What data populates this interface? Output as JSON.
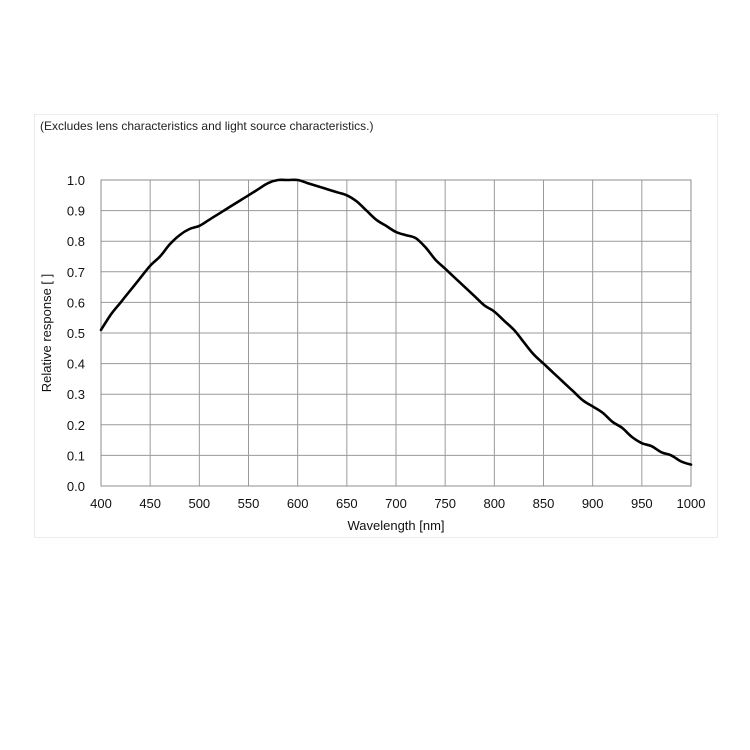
{
  "chart_data": {
    "type": "line",
    "note": "(Excludes lens characteristics and light source characteristics.)",
    "xlabel": "Wavelength [nm]",
    "ylabel": "Relative response [ ]",
    "xlim": [
      400,
      1000
    ],
    "ylim": [
      0,
      1.0
    ],
    "x_ticks": [
      400,
      450,
      500,
      550,
      600,
      650,
      700,
      750,
      800,
      850,
      900,
      950,
      1000
    ],
    "y_ticks": [
      0.0,
      0.1,
      0.2,
      0.3,
      0.4,
      0.5,
      0.6,
      0.7,
      0.8,
      0.9,
      1.0
    ],
    "y_tick_labels": [
      "0.0",
      "0.1",
      "0.2",
      "0.3",
      "0.4",
      "0.5",
      "0.6",
      "0.7",
      "0.8",
      "0.9",
      "1.0"
    ],
    "grid": true,
    "series": [
      {
        "color": "#000000",
        "x": [
          400,
          410,
          420,
          430,
          440,
          450,
          460,
          470,
          480,
          490,
          500,
          510,
          520,
          530,
          540,
          550,
          560,
          570,
          580,
          590,
          600,
          610,
          620,
          630,
          640,
          650,
          660,
          670,
          680,
          690,
          700,
          710,
          720,
          730,
          740,
          750,
          760,
          770,
          780,
          790,
          800,
          810,
          820,
          830,
          840,
          850,
          860,
          870,
          880,
          890,
          900,
          910,
          920,
          930,
          940,
          950,
          960,
          970,
          980,
          990,
          1000
        ],
        "y": [
          0.51,
          0.56,
          0.6,
          0.64,
          0.68,
          0.72,
          0.75,
          0.79,
          0.82,
          0.84,
          0.85,
          0.87,
          0.89,
          0.91,
          0.93,
          0.95,
          0.97,
          0.99,
          1.0,
          1.0,
          1.0,
          0.99,
          0.98,
          0.97,
          0.96,
          0.95,
          0.93,
          0.9,
          0.87,
          0.85,
          0.83,
          0.82,
          0.81,
          0.78,
          0.74,
          0.71,
          0.68,
          0.65,
          0.62,
          0.59,
          0.57,
          0.54,
          0.51,
          0.47,
          0.43,
          0.4,
          0.37,
          0.34,
          0.31,
          0.28,
          0.26,
          0.24,
          0.21,
          0.19,
          0.16,
          0.14,
          0.13,
          0.11,
          0.1,
          0.08,
          0.07
        ]
      }
    ]
  }
}
